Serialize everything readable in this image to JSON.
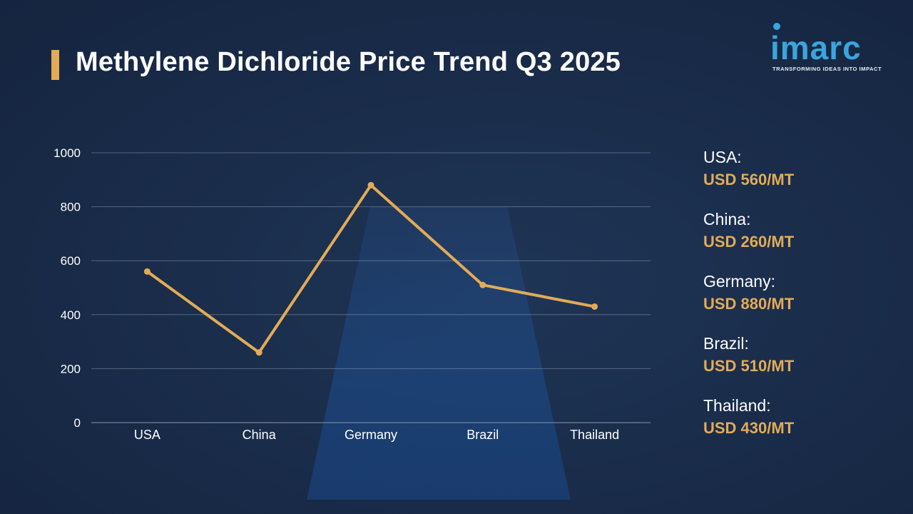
{
  "title": "Methylene Dichloride Price Trend Q3 2025",
  "logo": {
    "word": "imarc",
    "tagline": "TRANSFORMING IDEAS INTO IMPACT"
  },
  "colors": {
    "accent": "#e3ab56",
    "background": "#1a2d4b",
    "logo": "#3aa5dc"
  },
  "chart_data": {
    "type": "line",
    "title": "",
    "xlabel": "",
    "ylabel": "",
    "categories": [
      "USA",
      "China",
      "Germany",
      "Brazil",
      "Thailand"
    ],
    "series": [
      {
        "values": [
          560,
          260,
          880,
          510,
          430
        ]
      }
    ],
    "ylim": [
      0,
      1000
    ],
    "yticks": [
      0,
      200,
      400,
      600,
      800,
      1000
    ],
    "grid": true,
    "legend": "none"
  },
  "side_panel": [
    {
      "country": "USA:",
      "value": "USD 560/MT"
    },
    {
      "country": "China:",
      "value": "USD 260/MT"
    },
    {
      "country": "Germany:",
      "value": "USD 880/MT"
    },
    {
      "country": "Brazil:",
      "value": "USD 510/MT"
    },
    {
      "country": "Thailand:",
      "value": "USD 430/MT"
    }
  ]
}
